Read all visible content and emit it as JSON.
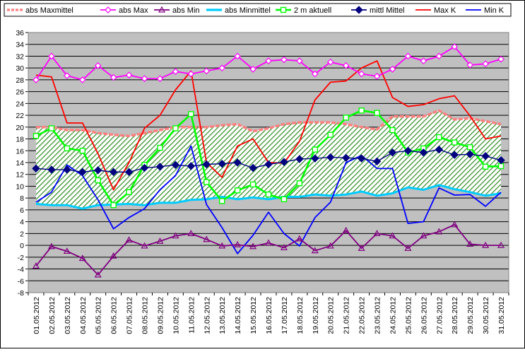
{
  "chart_data": {
    "type": "line",
    "title": "",
    "xlabel": "",
    "ylabel": "",
    "ylim": [
      -8,
      36
    ],
    "ytick_step": 2,
    "grid": true,
    "legend_position": "top",
    "categories": [
      "01.05.2012",
      "02.05.2012",
      "03.05.2012",
      "04.05.2012",
      "05.05.2012",
      "06.05.2012",
      "07.05.2012",
      "08.05.2012",
      "09.05.2012",
      "10.05.2012",
      "11.05.2012",
      "12.05.2012",
      "13.05.2012",
      "14.05.2012",
      "15.05.2012",
      "16.05.2012",
      "17.05.2012",
      "18.05.2012",
      "19.05.2012",
      "20.05.2012",
      "21.05.2012",
      "22.05.2012",
      "23.05.2012",
      "24.05.2012",
      "25.05.2012",
      "26.05.2012",
      "27.05.2012",
      "28.05.2012",
      "29.05.2012",
      "30.05.2012",
      "31.05.2012"
    ],
    "series": [
      {
        "name": "abs Maxmittel",
        "color": "#ff8080",
        "style": "thick-dashed",
        "values": [
          20.0,
          20.0,
          19.5,
          19.5,
          19.0,
          18.7,
          18.5,
          19.0,
          19.5,
          20.0,
          20.0,
          20.0,
          20.3,
          20.5,
          19.3,
          19.8,
          20.5,
          20.8,
          20.8,
          20.8,
          20.5,
          20.0,
          19.6,
          21.8,
          21.8,
          21.8,
          22.8,
          21.3,
          21.5,
          21.0,
          20.5
        ]
      },
      {
        "name": "abs Max",
        "color": "#ff00ff",
        "marker": "diamond-open",
        "values": [
          28.0,
          32.0,
          28.7,
          28.0,
          30.4,
          28.4,
          28.8,
          28.2,
          28.2,
          29.4,
          29.0,
          29.5,
          30.0,
          32.0,
          29.8,
          31.2,
          31.4,
          31.2,
          29.0,
          31.0,
          30.4,
          29.0,
          28.6,
          29.8,
          32.0,
          31.2,
          32.0,
          33.6,
          30.5,
          30.7,
          31.5
        ]
      },
      {
        "name": "abs Min",
        "color": "#800080",
        "marker": "triangle-open",
        "values": [
          -3.5,
          -0.2,
          -1.0,
          -2.2,
          -5.0,
          -1.8,
          0.9,
          -0.1,
          0.7,
          1.6,
          2.0,
          1.0,
          -0.1,
          0.1,
          -0.2,
          0.4,
          -0.4,
          1.1,
          -0.9,
          -0.1,
          2.5,
          -0.5,
          2.0,
          1.6,
          -0.5,
          1.6,
          2.3,
          3.5,
          0.2,
          0.0,
          0.0
        ]
      },
      {
        "name": "abs Minmittel",
        "color": "#00ccff",
        "style": "thick",
        "values": [
          7.0,
          6.8,
          6.8,
          6.2,
          6.8,
          6.9,
          7.0,
          6.8,
          7.2,
          7.2,
          7.7,
          7.8,
          8.2,
          7.8,
          8.1,
          7.8,
          8.2,
          8.2,
          8.6,
          8.4,
          8.6,
          9.1,
          8.4,
          8.8,
          9.8,
          9.4,
          10.2,
          9.5,
          9.0,
          8.4,
          8.8
        ]
      },
      {
        "name": "2 m aktuell",
        "color": "#00ff00",
        "marker": "square-open",
        "values": [
          18.5,
          19.8,
          16.4,
          16.0,
          11.0,
          6.8,
          9.0,
          13.6,
          16.5,
          19.8,
          22.2,
          10.7,
          7.5,
          9.3,
          10.3,
          8.6,
          7.8,
          10.5,
          16.2,
          18.7,
          21.6,
          22.8,
          22.4,
          19.5,
          15.7,
          16.4,
          18.3,
          17.4,
          16.6,
          13.3,
          13.4
        ]
      },
      {
        "name": "mittl Mittel",
        "color": "#000080",
        "marker": "diamond-filled",
        "values": [
          13.0,
          12.8,
          12.8,
          12.4,
          12.7,
          12.4,
          12.4,
          13.1,
          13.3,
          13.6,
          13.4,
          13.7,
          13.8,
          14.0,
          13.1,
          13.7,
          14.1,
          14.6,
          14.7,
          14.9,
          14.8,
          14.7,
          14.2,
          15.7,
          16.0,
          15.7,
          16.2,
          15.3,
          15.4,
          15.1,
          14.4
        ]
      },
      {
        "name": "Max K",
        "color": "#ff0000",
        "values": [
          28.8,
          28.5,
          20.7,
          20.7,
          15.5,
          9.4,
          14.0,
          19.8,
          22.0,
          26.3,
          29.5,
          14.0,
          11.5,
          16.8,
          18.0,
          14.0,
          13.9,
          17.6,
          24.6,
          27.6,
          27.8,
          30.0,
          31.2,
          25.0,
          23.5,
          23.8,
          24.8,
          25.3,
          21.9,
          18.0,
          18.5
        ]
      },
      {
        "name": "Min K",
        "color": "#0000ff",
        "values": [
          7.3,
          9.0,
          13.6,
          11.8,
          7.7,
          2.8,
          4.7,
          6.2,
          9.4,
          11.8,
          16.8,
          6.9,
          3.0,
          -1.4,
          1.7,
          5.6,
          2.0,
          -0.1,
          4.7,
          7.3,
          14.0,
          15.2,
          13.0,
          13.0,
          3.7,
          4.0,
          9.7,
          8.5,
          8.6,
          6.6,
          9.0
        ]
      }
    ]
  }
}
